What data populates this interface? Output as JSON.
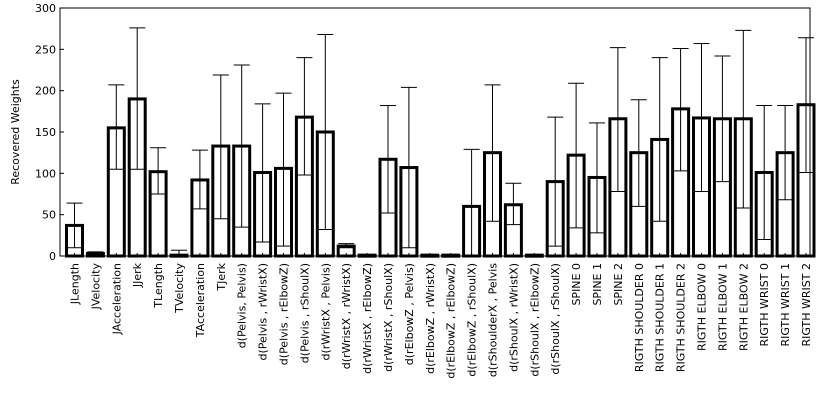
{
  "chart_data": {
    "type": "bar",
    "title": "",
    "xlabel": "",
    "ylabel": "Recovered Weights",
    "ylim": [
      0,
      300
    ],
    "yticks": [
      0,
      50,
      100,
      150,
      200,
      250,
      300
    ],
    "grid": false,
    "legend": "none",
    "categories": [
      "JLength",
      "JVelocity",
      "JAcceleration",
      "JJerk",
      "TLength",
      "TVelocity",
      "TAcceleration",
      "TJerk",
      "d(Pelvis, Pelvis)",
      "d(Pelvis , rWristX)",
      "d(Pelvis , rElbowZ)",
      "d(Pelvis , rShoulX)",
      "d(rWristX , Pelvis)",
      "d(rWristX , rWristX)",
      "d(rWristX , rElbowZ)",
      "d(rWristX , rShoulX)",
      "d(rElbowZ , Pelvis)",
      "d(rElbowZ , rWristX)",
      "d(rElbowZ , rElbowZ)",
      "d(rElbowZ , rShoulX)",
      "d(rShoulderX , Pelvis",
      "d(rShoulX , rWristX)",
      "d(rShoulX , rElbowZ)",
      "d(rShoulX , rShoulX)",
      "SPINE 0",
      "SPINE 1",
      "SPINE 2",
      "RIGTH SHOULDER 0",
      "RIGTH SHOULDER 1",
      "RIGTH SHOULDER 2",
      "RIGTH ELBOW 0",
      "RIGTH ELBOW 1",
      "RIGTH ELBOW 2",
      "RIGTH WRIST 0",
      "RIGTH WRIST 1",
      "RIGTH WRIST 2"
    ],
    "series": [
      {
        "name": "mean",
        "values": [
          37,
          3,
          155,
          190,
          102,
          1,
          92,
          133,
          133,
          101,
          106,
          168,
          150,
          12,
          1,
          117,
          107,
          1,
          1,
          60,
          125,
          62,
          1,
          90,
          122,
          95,
          166,
          125,
          141,
          178,
          167,
          166,
          166,
          101,
          125,
          183
        ]
      },
      {
        "name": "lower",
        "values": [
          10,
          0,
          105,
          105,
          75,
          0,
          57,
          45,
          35,
          17,
          12,
          98,
          32,
          10,
          0,
          52,
          10,
          0,
          0,
          0,
          42,
          38,
          0,
          12,
          34,
          28,
          78,
          60,
          42,
          103,
          78,
          90,
          58,
          20,
          68,
          101
        ]
      },
      {
        "name": "upper",
        "values": [
          64,
          5,
          207,
          276,
          131,
          7,
          128,
          219,
          231,
          184,
          197,
          240,
          268,
          15,
          2,
          182,
          204,
          2,
          2,
          129,
          207,
          88,
          2,
          168,
          209,
          161,
          252,
          189,
          240,
          251,
          257,
          242,
          273,
          182,
          182,
          264
        ]
      }
    ]
  }
}
